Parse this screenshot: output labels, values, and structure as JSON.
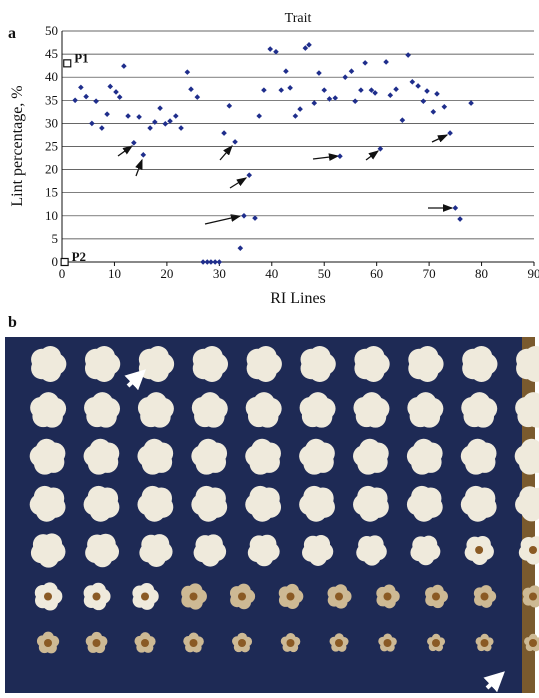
{
  "chart_data": {
    "type": "scatter",
    "title": "Trait",
    "panel": "a",
    "y_label": "Lint percentage, %",
    "x_label": "RI Lines",
    "xlim": [
      0,
      90
    ],
    "xticks": [
      0,
      10,
      20,
      30,
      40,
      50,
      60,
      70,
      80,
      90
    ],
    "ylim": [
      0,
      50
    ],
    "yticks": [
      0,
      5,
      10,
      15,
      20,
      25,
      30,
      35,
      40,
      45,
      50
    ],
    "grid": true,
    "color": "#1f2e8c",
    "x": [
      2.5,
      3.6,
      4.6,
      5.7,
      6.5,
      7.6,
      8.6,
      9.2,
      10.3,
      11,
      11.8,
      12.6,
      13.7,
      14.7,
      15.5,
      16.8,
      17.7,
      18.7,
      19.7,
      20.6,
      21.7,
      22.7,
      23.9,
      24.6,
      25.8,
      26.9,
      27.7,
      28.4,
      29.2,
      30,
      30.9,
      31.9,
      33,
      34,
      34.7,
      35.7,
      36.8,
      37.6,
      38.5,
      39.7,
      40.8,
      41.8,
      42.7,
      43.5,
      44.5,
      45.4,
      46.4,
      47.1,
      48.1,
      49,
      50,
      51,
      52.1,
      53,
      54,
      55.2,
      55.9,
      57,
      57.8,
      59,
      59.7,
      60.7,
      61.8,
      62.6,
      63.7,
      64.9,
      66,
      66.8,
      67.9,
      68.9,
      69.6,
      70.8,
      71.5,
      72.9,
      74,
      75,
      75.9,
      78
    ],
    "values": [
      35,
      37.8,
      35.8,
      30,
      34.8,
      29,
      32,
      38,
      36.8,
      35.7,
      42.4,
      31.6,
      25.8,
      31.4,
      23.2,
      29,
      30.3,
      33.3,
      29.9,
      30.5,
      31.6,
      29,
      41.1,
      37.4,
      35.7,
      0,
      0,
      0,
      0,
      0,
      27.9,
      33.8,
      26,
      3,
      10,
      18.8,
      9.5,
      31.6,
      37.2,
      46.1,
      45.5,
      37.2,
      41.3,
      37.7,
      31.6,
      33.1,
      46.3,
      47,
      34.4,
      40.9,
      37.2,
      35.3,
      35.5,
      22.9,
      40,
      41.3,
      34.8,
      37.2,
      43.1,
      37.2,
      36.6,
      24.5,
      43.3,
      36.1,
      37.4,
      30.7,
      44.8,
      39,
      38.1,
      34.8,
      37,
      32.5,
      36.4,
      33.6,
      27.9,
      11.7,
      9.3,
      34.4
    ],
    "parents": {
      "labels": [
        "P1",
        "P2"
      ],
      "x": [
        1,
        0.5
      ],
      "values": [
        43,
        0
      ]
    }
  },
  "photo": {
    "panel": "b"
  }
}
